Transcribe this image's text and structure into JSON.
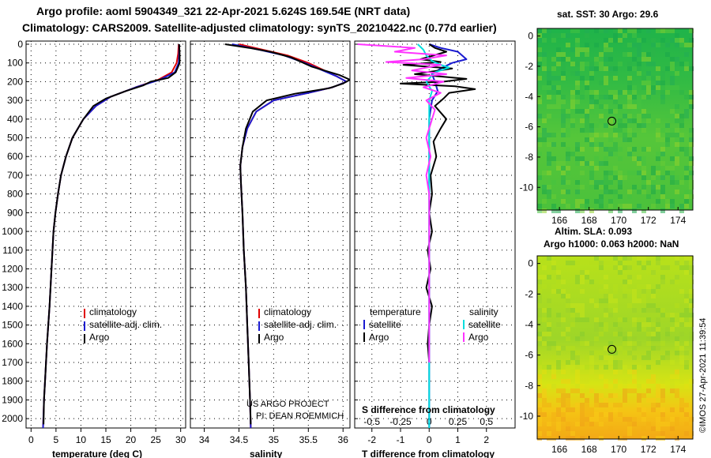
{
  "header": {
    "title_line1": "Argo profile: aoml 5904349_321 22-Apr-2021 5.624S 169.54E (NRT data)",
    "title_line2": "Climatology: CARS2009. Satellite-adjusted climatology: synTS_20210422.nc (0.77d earlier)"
  },
  "credit": "©IMOS 27-Apr-2021 11:39:54",
  "colors": {
    "climatology": "#e00000",
    "satellite": "#1a1ad0",
    "argo": "#000000",
    "sal_satellite": "#00dede",
    "sal_argo": "#ff33ff"
  },
  "chart_data": [
    {
      "type": "line",
      "id": "temperature",
      "xlabel": "temperature (deg C)",
      "xlim": [
        -1,
        31
      ],
      "xticks": [
        0,
        5,
        10,
        15,
        20,
        25,
        30
      ],
      "ylim": [
        2050,
        0
      ],
      "yticks": [
        0,
        100,
        200,
        300,
        400,
        500,
        600,
        700,
        800,
        900,
        1000,
        1100,
        1200,
        1300,
        1400,
        1500,
        1600,
        1700,
        1800,
        1900,
        2000
      ],
      "legend": [
        "climatology",
        "satellite-adj. clim.",
        "Argo"
      ],
      "series": [
        {
          "name": "climatology",
          "color": "#e00000",
          "points": [
            [
              29.6,
              0
            ],
            [
              29.5,
              50
            ],
            [
              29.2,
              100
            ],
            [
              28.2,
              150
            ],
            [
              25.5,
              190
            ],
            [
              21,
              230
            ],
            [
              16,
              280
            ],
            [
              13,
              330
            ],
            [
              10.5,
              400
            ],
            [
              8.3,
              500
            ],
            [
              7,
              600
            ],
            [
              6,
              700
            ],
            [
              5.4,
              800
            ],
            [
              4.9,
              900
            ],
            [
              4.5,
              1000
            ],
            [
              4.1,
              1200
            ],
            [
              3.7,
              1400
            ],
            [
              3.2,
              1600
            ],
            [
              2.8,
              1800
            ],
            [
              2.6,
              1900
            ],
            [
              2.4,
              2050
            ]
          ]
        },
        {
          "name": "satellite-adj. clim.",
          "color": "#1a1ad0",
          "points": [
            [
              29.7,
              0
            ],
            [
              29.7,
              50
            ],
            [
              29.6,
              100
            ],
            [
              28.8,
              150
            ],
            [
              25.8,
              190
            ],
            [
              21,
              230
            ],
            [
              16,
              280
            ],
            [
              13,
              330
            ],
            [
              10.5,
              400
            ],
            [
              8.3,
              500
            ],
            [
              7,
              600
            ],
            [
              6,
              700
            ],
            [
              5.4,
              800
            ],
            [
              4.9,
              900
            ],
            [
              4.5,
              1000
            ],
            [
              4.1,
              1200
            ],
            [
              3.7,
              1400
            ],
            [
              3.2,
              1600
            ],
            [
              2.8,
              1800
            ],
            [
              2.6,
              1900
            ],
            [
              2.4,
              2050
            ]
          ]
        },
        {
          "name": "Argo",
          "color": "#000000",
          "points": [
            [
              29.7,
              0
            ],
            [
              29.8,
              50
            ],
            [
              29.8,
              100
            ],
            [
              29,
              150
            ],
            [
              27.5,
              180
            ],
            [
              24,
              200
            ],
            [
              22.5,
              220
            ],
            [
              19,
              250
            ],
            [
              15,
              290
            ],
            [
              12.5,
              330
            ],
            [
              10.5,
              400
            ],
            [
              8.3,
              500
            ],
            [
              7,
              600
            ],
            [
              6,
              700
            ],
            [
              5.4,
              800
            ],
            [
              4.9,
              900
            ],
            [
              4.5,
              1000
            ],
            [
              4.1,
              1200
            ],
            [
              3.7,
              1400
            ],
            [
              3.2,
              1600
            ],
            [
              2.8,
              1800
            ],
            [
              2.6,
              1900
            ],
            [
              2.5,
              2030
            ]
          ]
        }
      ]
    },
    {
      "type": "line",
      "id": "salinity",
      "xlabel": "salinity",
      "xlim": [
        33.8,
        36.1
      ],
      "xticks": [
        34,
        34.5,
        35,
        35.5,
        36
      ],
      "ylim": [
        2050,
        0
      ],
      "legend": [
        "climatology",
        "satellite-adj. clim.",
        "Argo"
      ],
      "annotation": [
        "US ARGO PROJECT",
        "PI: DEAN ROEMMICH"
      ],
      "series": [
        {
          "name": "climatology",
          "color": "#e00000",
          "points": [
            [
              34.5,
              0
            ],
            [
              34.85,
              30
            ],
            [
              35.2,
              60
            ],
            [
              35.5,
              100
            ],
            [
              35.9,
              170
            ],
            [
              36.05,
              200
            ],
            [
              35.85,
              230
            ],
            [
              35.5,
              260
            ],
            [
              35.0,
              300
            ],
            [
              34.75,
              360
            ],
            [
              34.62,
              450
            ],
            [
              34.55,
              550
            ],
            [
              34.52,
              650
            ],
            [
              34.53,
              750
            ],
            [
              34.55,
              900
            ],
            [
              34.57,
              1100
            ],
            [
              34.6,
              1300
            ],
            [
              34.62,
              1500
            ],
            [
              34.64,
              1700
            ],
            [
              34.66,
              1900
            ],
            [
              34.67,
              2050
            ]
          ]
        },
        {
          "name": "satellite-adj. clim.",
          "color": "#1a1ad0",
          "points": [
            [
              34.4,
              0
            ],
            [
              34.8,
              30
            ],
            [
              35.15,
              60
            ],
            [
              35.45,
              100
            ],
            [
              35.9,
              170
            ],
            [
              36.05,
              200
            ],
            [
              35.85,
              230
            ],
            [
              35.5,
              260
            ],
            [
              35.0,
              300
            ],
            [
              34.75,
              360
            ],
            [
              34.62,
              450
            ],
            [
              34.55,
              550
            ],
            [
              34.52,
              650
            ],
            [
              34.53,
              750
            ],
            [
              34.55,
              900
            ],
            [
              34.57,
              1100
            ],
            [
              34.6,
              1300
            ],
            [
              34.62,
              1500
            ],
            [
              34.64,
              1700
            ],
            [
              34.66,
              1900
            ],
            [
              34.67,
              2050
            ]
          ]
        },
        {
          "name": "Argo",
          "color": "#000000",
          "points": [
            [
              34.3,
              0
            ],
            [
              34.65,
              20
            ],
            [
              34.95,
              40
            ],
            [
              35.25,
              70
            ],
            [
              35.55,
              120
            ],
            [
              35.95,
              165
            ],
            [
              36.1,
              190
            ],
            [
              36.0,
              210
            ],
            [
              35.8,
              235
            ],
            [
              35.3,
              265
            ],
            [
              34.9,
              300
            ],
            [
              34.7,
              360
            ],
            [
              34.6,
              450
            ],
            [
              34.55,
              550
            ],
            [
              34.52,
              650
            ],
            [
              34.53,
              750
            ],
            [
              34.55,
              900
            ],
            [
              34.57,
              1100
            ],
            [
              34.6,
              1300
            ],
            [
              34.62,
              1500
            ],
            [
              34.64,
              1700
            ],
            [
              34.66,
              1900
            ],
            [
              34.67,
              2030
            ]
          ]
        }
      ]
    },
    {
      "type": "line",
      "id": "difference",
      "xlabel": "T difference from climatology",
      "xlim": [
        -2.6,
        3.0
      ],
      "xticks": [
        -2,
        -1,
        0,
        1,
        2
      ],
      "x2label": "S difference from climatology",
      "x2ticks": [
        "-0.5",
        "-0.25",
        "0",
        "0.25",
        "0.5"
      ],
      "x2values": [
        -0.5,
        -0.25,
        0,
        0.25,
        0.5
      ],
      "legend_left_title": "temperature",
      "legend_right_title": "salinity",
      "legend": [
        "satellite",
        "Argo",
        "satellite",
        "Argo"
      ],
      "series": [
        {
          "name": "T satellite",
          "color": "#1a1ad0",
          "points": [
            [
              0,
              0
            ],
            [
              0.4,
              20
            ],
            [
              1.0,
              40
            ],
            [
              1.3,
              80
            ],
            [
              0.8,
              100
            ],
            [
              0.4,
              130
            ],
            [
              0.1,
              160
            ],
            [
              0.2,
              200
            ],
            [
              0.3,
              250
            ],
            [
              0.1,
              300
            ],
            [
              0.0,
              400
            ],
            [
              0.0,
              2050
            ]
          ]
        },
        {
          "name": "T Argo",
          "color": "#000000",
          "points": [
            [
              0,
              0
            ],
            [
              0.2,
              20
            ],
            [
              0.6,
              40
            ],
            [
              -0.3,
              80
            ],
            [
              0.4,
              95
            ],
            [
              -0.9,
              110
            ],
            [
              0.8,
              130
            ],
            [
              -0.5,
              160
            ],
            [
              1.3,
              185
            ],
            [
              0.5,
              200
            ],
            [
              -1.0,
              210
            ],
            [
              0.9,
              225
            ],
            [
              1.6,
              240
            ],
            [
              0.7,
              260
            ],
            [
              0.5,
              290
            ],
            [
              0.2,
              330
            ],
            [
              0.6,
              400
            ],
            [
              0.4,
              450
            ],
            [
              0.15,
              520
            ],
            [
              0.25,
              600
            ],
            [
              0.05,
              700
            ],
            [
              0.1,
              800
            ],
            [
              0.0,
              900
            ],
            [
              0.1,
              1000
            ],
            [
              -0.05,
              1100
            ],
            [
              0.05,
              1200
            ],
            [
              -0.1,
              1300
            ],
            [
              0.1,
              1400
            ],
            [
              0.0,
              1500
            ],
            [
              -0.05,
              1600
            ],
            [
              0.0,
              1700
            ]
          ]
        },
        {
          "name": "S satellite",
          "color": "#00dede",
          "points": [
            [
              -0.4,
              0
            ],
            [
              -0.2,
              30
            ],
            [
              -0.1,
              60
            ],
            [
              0.1,
              90
            ],
            [
              0.4,
              110
            ],
            [
              0.7,
              125
            ],
            [
              0.2,
              150
            ],
            [
              -0.1,
              200
            ],
            [
              0.1,
              250
            ],
            [
              0.0,
              300
            ],
            [
              0.0,
              2050
            ]
          ]
        },
        {
          "name": "S Argo",
          "color": "#ff33ff",
          "points": [
            [
              -2.5,
              0
            ],
            [
              -0.5,
              20
            ],
            [
              -1.2,
              40
            ],
            [
              0.6,
              60
            ],
            [
              -0.2,
              80
            ],
            [
              -1.5,
              95
            ],
            [
              0.4,
              110
            ],
            [
              -0.6,
              140
            ],
            [
              0.6,
              160
            ],
            [
              -0.8,
              180
            ],
            [
              0.5,
              200
            ],
            [
              -0.2,
              230
            ],
            [
              0.4,
              260
            ],
            [
              -0.1,
              300
            ],
            [
              0.2,
              350
            ],
            [
              0.1,
              400
            ],
            [
              -0.1,
              500
            ],
            [
              0.05,
              600
            ],
            [
              -0.1,
              700
            ],
            [
              0.0,
              800
            ],
            [
              0.0,
              1700
            ]
          ]
        }
      ]
    },
    {
      "type": "heatmap",
      "id": "sst_map",
      "title": "sat. SST: 30 Argo: 29.6",
      "xlim": [
        164.5,
        175.0
      ],
      "ylim": [
        -11.5,
        0.5
      ],
      "xticks": [
        166,
        168,
        170,
        172,
        174
      ],
      "yticks": [
        0,
        -2,
        -4,
        -6,
        -8,
        -10
      ],
      "marker": {
        "lon": 169.54,
        "lat": -5.624
      }
    },
    {
      "type": "heatmap",
      "id": "sla_map",
      "title_line1": "Altim. SLA: 0.093",
      "title_line2": "Argo h1000: 0.063 h2000: NaN",
      "xlim": [
        164.5,
        175.0
      ],
      "ylim": [
        -11.5,
        0.5
      ],
      "xticks": [
        166,
        168,
        170,
        172,
        174
      ],
      "yticks": [
        0,
        -2,
        -4,
        -6,
        -8,
        -10
      ],
      "marker": {
        "lon": 169.54,
        "lat": -5.624
      }
    }
  ]
}
